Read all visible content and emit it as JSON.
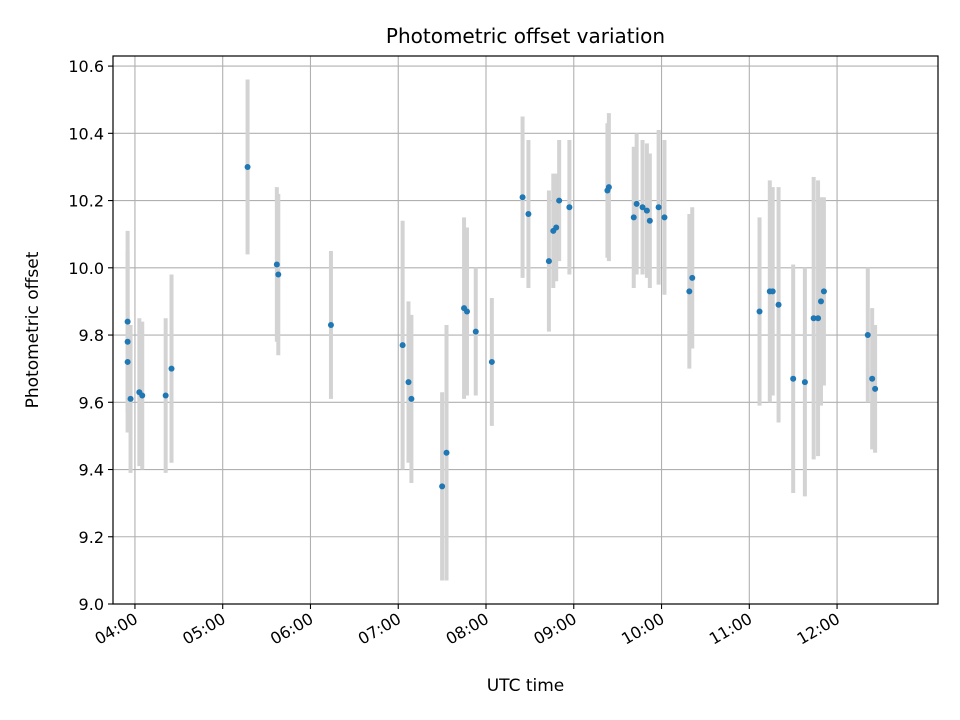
{
  "chart_data": {
    "type": "scatter",
    "title": "Photometric offset variation",
    "xlabel": "UTC time",
    "ylabel": "Photometric offset",
    "grid": true,
    "xlim": [
      "03:45",
      "13:09"
    ],
    "ylim": [
      9.0,
      10.63
    ],
    "x_ticks": [
      "04:00",
      "05:00",
      "06:00",
      "07:00",
      "08:00",
      "09:00",
      "10:00",
      "11:00",
      "12:00"
    ],
    "y_ticks": [
      "9.0",
      "9.2",
      "9.4",
      "9.6",
      "9.8",
      "10.0",
      "10.2",
      "10.4",
      "10.6"
    ],
    "colors": {
      "marker": "#1f77b4",
      "errorbar": "#d3d3d3"
    },
    "series": [
      {
        "x": [
          "03:55",
          "03:55",
          "03:55",
          "03:57",
          "04:03",
          "04:05",
          "04:21",
          "04:25",
          "05:17",
          "05:37",
          "05:38",
          "06:14",
          "07:03",
          "07:07",
          "07:09",
          "07:30",
          "07:33",
          "07:45",
          "07:47",
          "07:53",
          "08:04",
          "08:25",
          "08:29",
          "08:43",
          "08:46",
          "08:48",
          "08:50",
          "08:57",
          "09:23",
          "09:24",
          "09:41",
          "09:43",
          "09:47",
          "09:50",
          "09:52",
          "09:58",
          "10:02",
          "10:19",
          "10:21",
          "11:07",
          "11:14",
          "11:16",
          "11:20",
          "11:30",
          "11:38",
          "11:44",
          "11:47",
          "11:49",
          "11:51",
          "12:21",
          "12:24",
          "12:26"
        ],
        "y": [
          9.84,
          9.78,
          9.72,
          9.61,
          9.63,
          9.62,
          9.62,
          9.7,
          10.3,
          10.01,
          9.98,
          9.83,
          9.77,
          9.66,
          9.61,
          9.35,
          9.45,
          9.88,
          9.87,
          9.81,
          9.72,
          10.21,
          10.16,
          10.02,
          10.11,
          10.12,
          10.2,
          10.18,
          10.23,
          10.24,
          10.15,
          10.19,
          10.18,
          10.17,
          10.14,
          10.18,
          10.15,
          9.93,
          9.97,
          9.87,
          9.93,
          9.93,
          9.89,
          9.67,
          9.66,
          9.85,
          9.85,
          9.9,
          9.93,
          9.8,
          9.67,
          9.64
        ],
        "yerr": [
          0.27,
          0.27,
          0.15,
          0.22,
          0.22,
          0.22,
          0.23,
          0.28,
          0.26,
          0.23,
          0.24,
          0.22,
          0.37,
          0.24,
          0.25,
          0.28,
          0.38,
          0.27,
          0.25,
          0.19,
          0.19,
          0.24,
          0.22,
          0.21,
          0.17,
          0.16,
          0.18,
          0.2,
          0.2,
          0.22,
          0.21,
          0.21,
          0.2,
          0.2,
          0.2,
          0.23,
          0.23,
          0.23,
          0.21,
          0.28,
          0.33,
          0.31,
          0.35,
          0.34,
          0.34,
          0.42,
          0.41,
          0.31,
          0.28,
          0.2,
          0.21,
          0.19
        ]
      }
    ]
  }
}
